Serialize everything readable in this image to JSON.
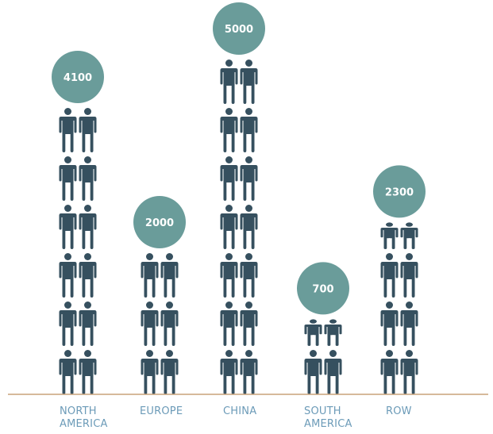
{
  "chart_data": {
    "type": "pictograph",
    "categories": [
      "NORTH\nAMERICA",
      "EUROPE",
      "CHINA",
      "SOUTH\nAMERICA",
      "ROW"
    ],
    "values": [
      4100,
      2000,
      5000,
      700,
      2300
    ],
    "value_labels": [
      "4100",
      "2000",
      "5000",
      "700",
      "2300"
    ],
    "units_per_row": 2,
    "rows": [
      6,
      3,
      7,
      1.5,
      3.5
    ],
    "colors": {
      "icon": "#36505f",
      "bubble": "#6a9c9a",
      "bubble_text": "#ffffff",
      "baseline": "#c8a27a",
      "label": "#6c9bb8"
    },
    "icon_name": "person-icon"
  }
}
